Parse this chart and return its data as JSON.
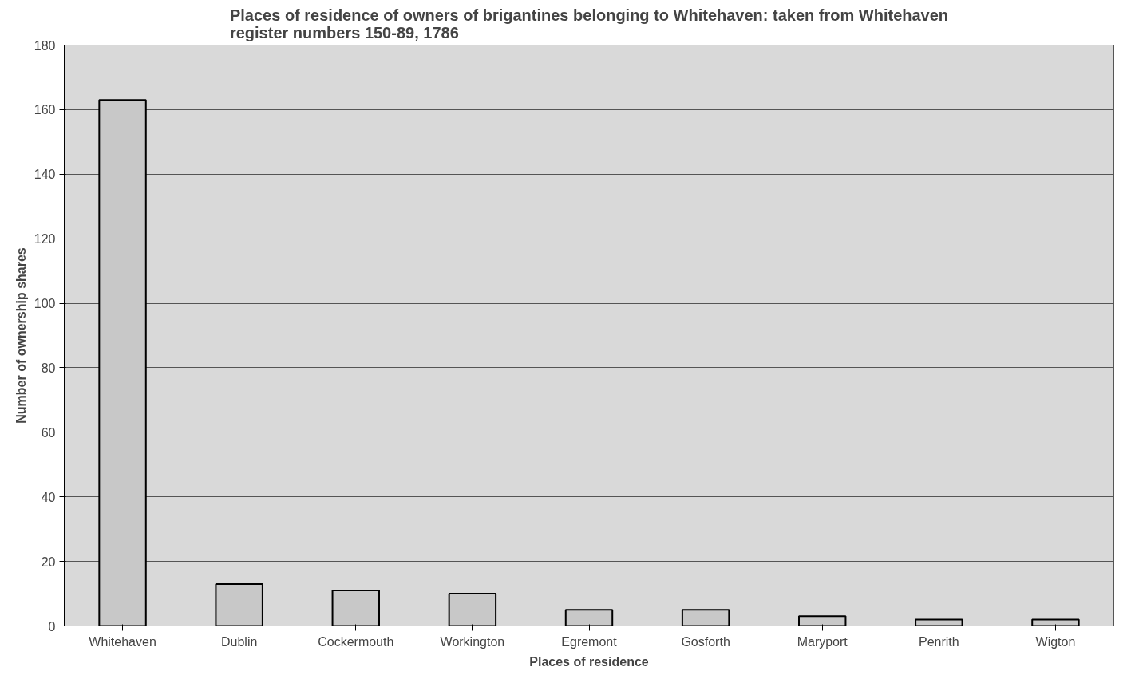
{
  "chart_data": {
    "type": "bar",
    "title": "Places of residence of owners of brigantines belonging to Whitehaven: taken from Whitehaven register numbers 150-89, 1786",
    "xlabel": "Places of residence",
    "ylabel": "Number of ownership shares",
    "categories": [
      "Whitehaven",
      "Dublin",
      "Cockermouth",
      "Workington",
      "Egremont",
      "Gosforth",
      "Maryport",
      "Penrith",
      "Wigton"
    ],
    "values": [
      163,
      13,
      11,
      10,
      5,
      5,
      3,
      2,
      2
    ],
    "color": "#c8c8c8",
    "ylim": [
      0,
      180
    ],
    "yticks": [
      0,
      20,
      40,
      60,
      80,
      100,
      120,
      140,
      160,
      180
    ],
    "grid": "y"
  }
}
